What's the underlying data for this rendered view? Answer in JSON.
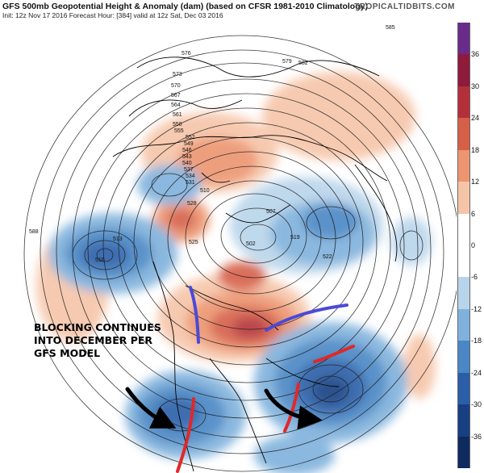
{
  "header": {
    "title": "GFS 500mb Geopotential Height & Anomaly (dam) (based on CFSR 1981-2010 Climatology)",
    "subtitle": "Init: 12z Nov 17 2016   Forecast Hour: [384]   valid at 12z Sat, Dec 03 2016",
    "brand": "TROPICALTIDBITS.COM"
  },
  "annotation": {
    "lines": [
      "BLOCKING CONTINUES",
      "INTO DECEMBER PER",
      "GFS MODEL"
    ]
  },
  "colorbar": {
    "ticks": [
      "36",
      "30",
      "24",
      "18",
      "12",
      "6",
      "0",
      "-6",
      "-12",
      "-18",
      "-24",
      "-30",
      "-36"
    ],
    "colors": [
      "#6a2c8a",
      "#8e1a3c",
      "#b3303b",
      "#d65f48",
      "#ec9570",
      "#f6c5a8",
      "#ffffff",
      "#ffffff",
      "#b8d4ea",
      "#7fb1dc",
      "#4a87c4",
      "#2a5ea8",
      "#173f82",
      "#0f2a5e"
    ]
  },
  "contour_labels": [
    "585",
    "576",
    "579",
    "582",
    "573",
    "570",
    "567",
    "564",
    "561",
    "558",
    "555",
    "552",
    "549",
    "546",
    "543",
    "540",
    "537",
    "534",
    "531",
    "528",
    "525",
    "522",
    "519",
    "516",
    "513",
    "510",
    "507",
    "502",
    "588"
  ],
  "anomalies": {
    "positive_color": "#e88a60",
    "negative_color": "#2f6fb5"
  },
  "annotation_marks": {
    "blue": "#4a4ad6",
    "red": "#e02828",
    "black": "#000000"
  }
}
